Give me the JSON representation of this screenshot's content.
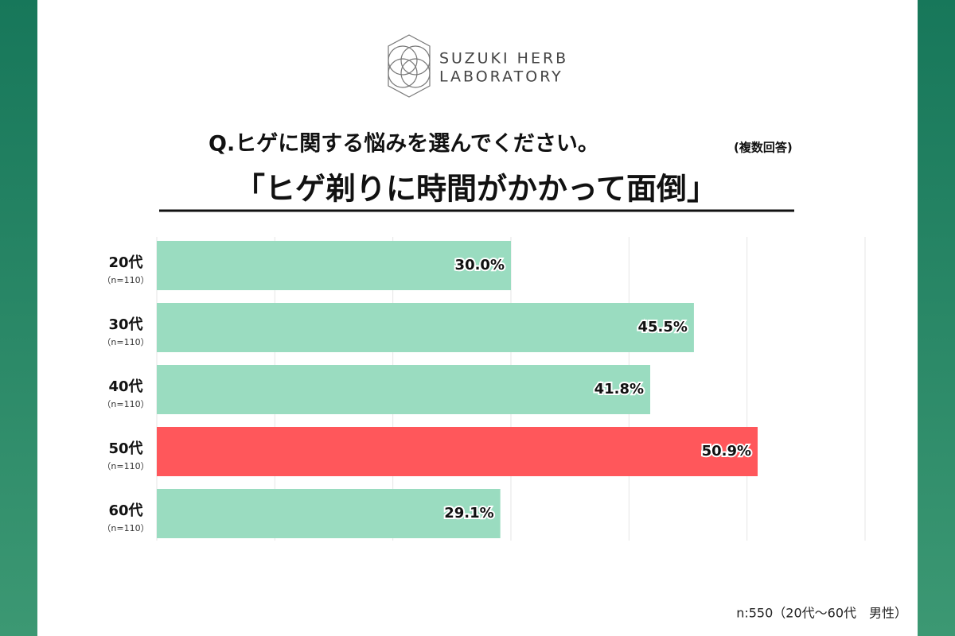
{
  "brand": [
    "SUZUKI HERB",
    "LABORATORY"
  ],
  "chart_data": {
    "type": "hbar",
    "question": "Q.ヒゲに関する悩みを選んでください。",
    "question_note": "(複数回答)",
    "title": "「ヒゲ剃りに時間がかかって面倒」",
    "categories": [
      "20代",
      "30代",
      "40代",
      "50代",
      "60代"
    ],
    "category_notes": [
      "（n=110）",
      "（n=110）",
      "（n=110）",
      "（n=110）",
      "（n=110）"
    ],
    "values": [
      30.0,
      45.5,
      41.8,
      50.9,
      29.1
    ],
    "value_labels": [
      "30.0%",
      "45.5%",
      "41.8%",
      "50.9%",
      "29.1%"
    ],
    "colors": [
      "#9adcc0",
      "#9adcc0",
      "#9adcc0",
      "#ff575b",
      "#9adcc0"
    ],
    "xlim": [
      0,
      60
    ],
    "xticks": [
      0,
      10,
      20,
      30,
      40,
      50,
      60
    ],
    "grid": true,
    "footnote": "n:550（20代〜60代　男性）"
  }
}
